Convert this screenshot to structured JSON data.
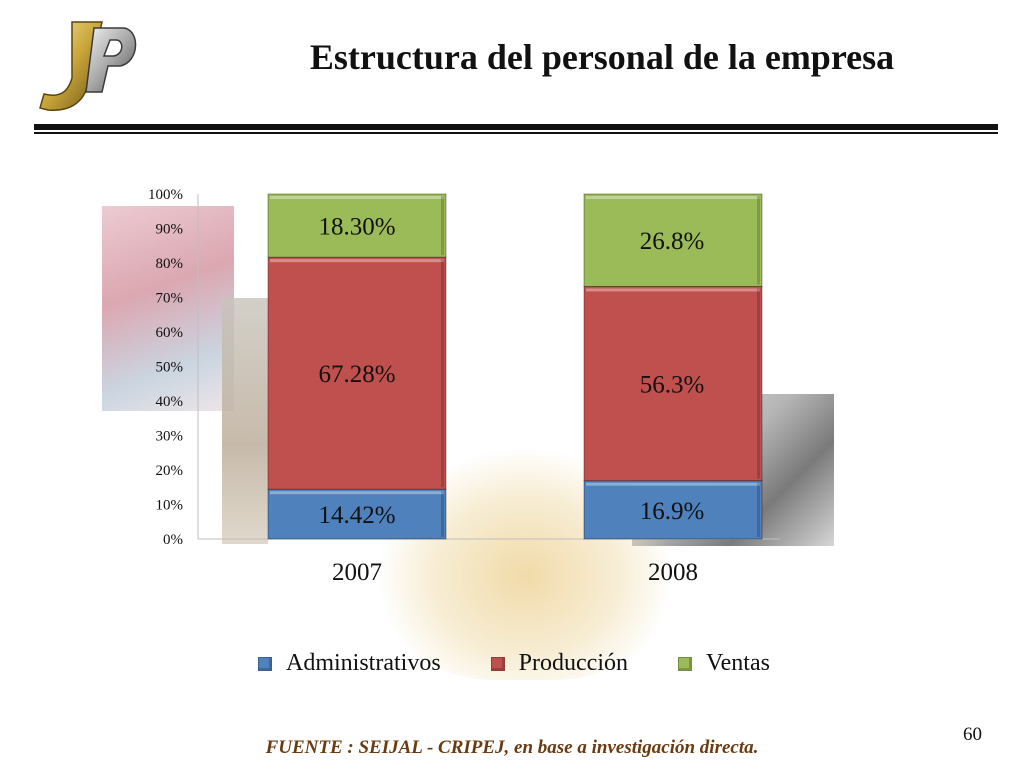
{
  "slide": {
    "title": "Estructura del personal de la empresa",
    "source": "FUENTE : SEIJAL - CRIPEJ, en base a investigación directa.",
    "page_number": "60"
  },
  "colors": {
    "administrativos": "#4f81bd",
    "produccion": "#c0504d",
    "ventas": "#9bbb59",
    "source_text": "#6a3b10"
  },
  "chart_data": {
    "type": "bar",
    "stacked": true,
    "categories": [
      "2007",
      "2008"
    ],
    "series": [
      {
        "name": "Administrativos",
        "values": [
          14.42,
          16.9
        ],
        "labels": [
          "14.42%",
          "16.9%"
        ],
        "color": "#4f81bd"
      },
      {
        "name": "Producción",
        "values": [
          67.28,
          56.3
        ],
        "labels": [
          "67.28%",
          "56.3%"
        ],
        "color": "#c0504d"
      },
      {
        "name": "Ventas",
        "values": [
          18.3,
          26.8
        ],
        "labels": [
          "18.30%",
          "26.8%"
        ],
        "color": "#9bbb59"
      }
    ],
    "title": "",
    "xlabel": "",
    "ylabel": "",
    "ylim": [
      0,
      100
    ],
    "yticks": [
      "0%",
      "10%",
      "20%",
      "30%",
      "40%",
      "50%",
      "60%",
      "70%",
      "80%",
      "90%",
      "100%"
    ],
    "grid": false,
    "legend": "bottom"
  }
}
